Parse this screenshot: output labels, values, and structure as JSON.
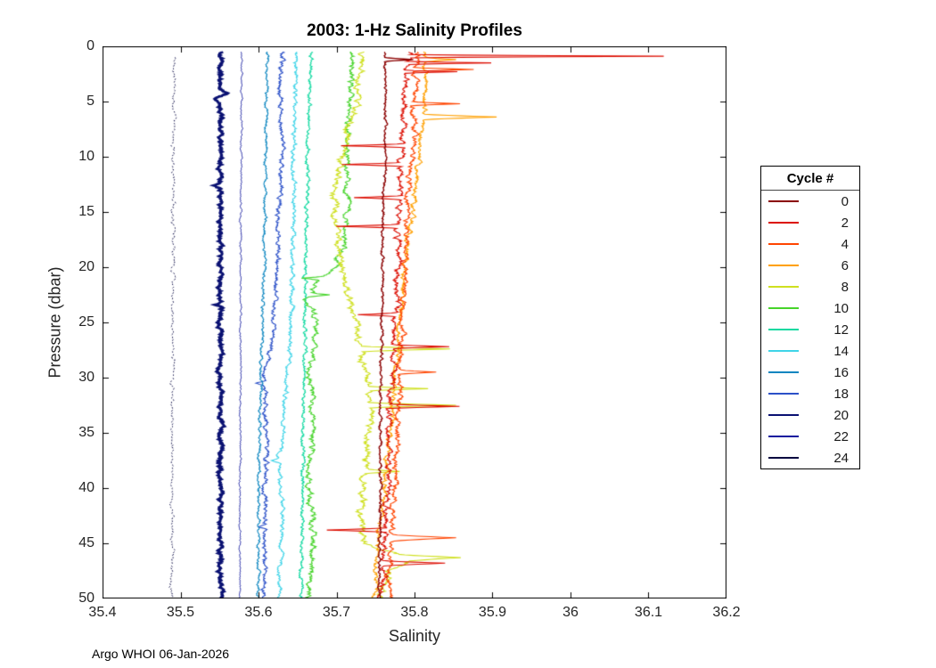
{
  "title": "2003: 1-Hz Salinity Profiles",
  "footer": "Argo WHOI 06-Jan-2026",
  "chart_data": {
    "type": "line",
    "title": "2003: 1-Hz Salinity Profiles",
    "xlabel": "Salinity",
    "ylabel": "Pressure (dbar)",
    "xlim": [
      35.4,
      36.2
    ],
    "ylim": [
      0,
      50
    ],
    "y_axis_reversed": true,
    "grid": false,
    "box": true,
    "tick_direction": "in",
    "xtick_values": [
      35.4,
      35.5,
      35.6,
      35.7,
      35.8,
      35.9,
      36,
      36.1,
      36.2
    ],
    "xtick_labels": [
      "35.4",
      "35.5",
      "35.6",
      "35.7",
      "35.8",
      "35.9",
      "36",
      "36.1",
      "36.2"
    ],
    "ytick_values": [
      0,
      5,
      10,
      15,
      20,
      25,
      30,
      35,
      40,
      45,
      50
    ],
    "ytick_labels": [
      "0",
      "5",
      "10",
      "15",
      "20",
      "25",
      "30",
      "35",
      "40",
      "45",
      "50"
    ],
    "legend": {
      "title": "Cycle #",
      "position": "right-outside",
      "entries": [
        {
          "label": "0",
          "color": "#8B0000"
        },
        {
          "label": "2",
          "color": "#DC0D00"
        },
        {
          "label": "4",
          "color": "#FF4500"
        },
        {
          "label": "6",
          "color": "#FFA000"
        },
        {
          "label": "8",
          "color": "#CFE020"
        },
        {
          "label": "10",
          "color": "#46D42A"
        },
        {
          "label": "12",
          "color": "#0FD9A0"
        },
        {
          "label": "14",
          "color": "#3FD4E8"
        },
        {
          "label": "16",
          "color": "#0C86C0"
        },
        {
          "label": "18",
          "color": "#2B50C8"
        },
        {
          "label": "20",
          "color": "#0A1172"
        },
        {
          "label": "22",
          "color": "#131A9E"
        },
        {
          "label": "24",
          "color": "#02023F"
        }
      ]
    },
    "series": [
      {
        "cycle": 24,
        "color": "#02023F",
        "width": 1.0,
        "noise": 0.0028,
        "dash": [
          2,
          2.5
        ],
        "pmin": 1.0,
        "pmax": 50,
        "anchors": [
          [
            1,
            35.492
          ],
          [
            10,
            35.491
          ],
          [
            20,
            35.49
          ],
          [
            30,
            35.49
          ],
          [
            40,
            35.489
          ],
          [
            50,
            35.489
          ]
        ],
        "spikes": []
      },
      {
        "cycle": 22,
        "color": "#131A9E",
        "width": 1.0,
        "noise": 0.0015,
        "pmin": 0.5,
        "pmax": 50,
        "anchors": [
          [
            0.5,
            35.578
          ],
          [
            10,
            35.578
          ],
          [
            20,
            35.577
          ],
          [
            30,
            35.577
          ],
          [
            40,
            35.576
          ],
          [
            50,
            35.576
          ]
        ],
        "spikes": []
      },
      {
        "cycle": 20,
        "color": "#0A1172",
        "width": 2.8,
        "noise": 0.0035,
        "pmin": 0.5,
        "pmax": 50,
        "anchors": [
          [
            0.5,
            35.551
          ],
          [
            10,
            35.551
          ],
          [
            20,
            35.551
          ],
          [
            30,
            35.551
          ],
          [
            40,
            35.551
          ],
          [
            50,
            35.551
          ]
        ],
        "spikes": [
          [
            4.3,
            35.559,
            0.5
          ],
          [
            4.7,
            35.543,
            0.5
          ],
          [
            12.6,
            35.545,
            0.25
          ],
          [
            23.4,
            35.542,
            0.3
          ],
          [
            33.6,
            35.546,
            0.25
          ]
        ]
      },
      {
        "cycle": 18,
        "color": "#2B50C8",
        "width": 1.1,
        "noise": 0.004,
        "pmin": 0.5,
        "pmax": 50,
        "anchors": [
          [
            0.5,
            35.63
          ],
          [
            4,
            35.628
          ],
          [
            8,
            35.63
          ],
          [
            12,
            35.628
          ],
          [
            16,
            35.626
          ],
          [
            20,
            35.624
          ],
          [
            24,
            35.62
          ],
          [
            27,
            35.616
          ],
          [
            29,
            35.61
          ],
          [
            31,
            35.606
          ],
          [
            33,
            35.61
          ],
          [
            36,
            35.61
          ],
          [
            40,
            35.609
          ],
          [
            44,
            35.608
          ],
          [
            47,
            35.608
          ],
          [
            50,
            35.607
          ]
        ],
        "spikes": [
          [
            30.5,
            35.598,
            0.25
          ],
          [
            43.5,
            35.6,
            0.25
          ]
        ]
      },
      {
        "cycle": 16,
        "color": "#0C86C0",
        "width": 1.1,
        "noise": 0.0025,
        "pmin": 0.5,
        "pmax": 50,
        "anchors": [
          [
            0.5,
            35.612
          ],
          [
            5,
            35.61
          ],
          [
            10,
            35.61
          ],
          [
            15,
            35.608
          ],
          [
            20,
            35.607
          ],
          [
            25,
            35.605
          ],
          [
            30,
            35.603
          ],
          [
            35,
            35.602
          ],
          [
            40,
            35.6
          ],
          [
            45,
            35.6
          ],
          [
            50,
            35.599
          ]
        ],
        "spikes": []
      },
      {
        "cycle": 14,
        "color": "#3FD4E8",
        "width": 1.1,
        "noise": 0.0035,
        "pmin": 0.5,
        "pmax": 50,
        "anchors": [
          [
            0.5,
            35.648
          ],
          [
            5,
            35.646
          ],
          [
            10,
            35.645
          ],
          [
            15,
            35.644
          ],
          [
            20,
            35.643
          ],
          [
            25,
            35.642
          ],
          [
            28,
            35.64
          ],
          [
            30,
            35.636
          ],
          [
            33,
            35.634
          ],
          [
            36,
            35.63
          ],
          [
            38,
            35.625
          ],
          [
            40,
            35.63
          ],
          [
            44,
            35.63
          ],
          [
            47,
            35.628
          ],
          [
            50,
            35.627
          ]
        ],
        "spikes": [
          [
            37.5,
            35.615,
            0.3
          ]
        ]
      },
      {
        "cycle": 12,
        "color": "#0FD9A0",
        "width": 1.1,
        "noise": 0.003,
        "pmin": 0.5,
        "pmax": 50,
        "anchors": [
          [
            0.5,
            35.668
          ],
          [
            5,
            35.665
          ],
          [
            10,
            35.663
          ],
          [
            15,
            35.662
          ],
          [
            20,
            35.66
          ],
          [
            25,
            35.66
          ],
          [
            30,
            35.658
          ],
          [
            35,
            35.657
          ],
          [
            40,
            35.657
          ],
          [
            45,
            35.656
          ],
          [
            50,
            35.655
          ]
        ],
        "spikes": []
      },
      {
        "cycle": 10,
        "color": "#46D42A",
        "width": 1.1,
        "noise": 0.005,
        "pmin": 0.5,
        "pmax": 50,
        "anchors": [
          [
            0.5,
            35.72
          ],
          [
            4,
            35.718
          ],
          [
            8,
            35.715
          ],
          [
            12,
            35.712
          ],
          [
            15,
            35.715
          ],
          [
            18,
            35.71
          ],
          [
            20,
            35.7
          ],
          [
            21.5,
            35.672
          ],
          [
            23,
            35.662
          ],
          [
            25,
            35.675
          ],
          [
            27,
            35.67
          ],
          [
            30,
            35.665
          ],
          [
            33,
            35.672
          ],
          [
            36,
            35.668
          ],
          [
            40,
            35.665
          ],
          [
            44,
            35.67
          ],
          [
            47,
            35.668
          ],
          [
            50,
            35.665
          ]
        ],
        "spikes": [
          [
            21.0,
            35.655,
            0.2
          ],
          [
            22.5,
            35.69,
            0.2
          ]
        ]
      },
      {
        "cycle": 8,
        "color": "#CFE020",
        "width": 1.1,
        "noise": 0.006,
        "pmin": 0.5,
        "pmax": 50,
        "anchors": [
          [
            0.5,
            35.735
          ],
          [
            3,
            35.73
          ],
          [
            6,
            35.72
          ],
          [
            9,
            35.71
          ],
          [
            12,
            35.7
          ],
          [
            15,
            35.695
          ],
          [
            18,
            35.7
          ],
          [
            21,
            35.71
          ],
          [
            24,
            35.72
          ],
          [
            27,
            35.73
          ],
          [
            30,
            35.74
          ],
          [
            33,
            35.745
          ],
          [
            36,
            35.74
          ],
          [
            39,
            35.735
          ],
          [
            42,
            35.73
          ],
          [
            45,
            35.735
          ],
          [
            46.5,
            35.8
          ],
          [
            47.5,
            35.77
          ],
          [
            50,
            35.755
          ]
        ],
        "spikes": [
          [
            27.4,
            35.845,
            0.25
          ],
          [
            31.0,
            35.82,
            0.2
          ],
          [
            32.5,
            35.855,
            0.25
          ],
          [
            38.5,
            35.78,
            0.2
          ],
          [
            46.3,
            35.858,
            0.3
          ]
        ]
      },
      {
        "cycle": 6,
        "color": "#FFA000",
        "width": 1.1,
        "noise": 0.004,
        "pmin": 0.5,
        "pmax": 50,
        "anchors": [
          [
            0.5,
            35.812
          ],
          [
            3,
            35.815
          ],
          [
            6,
            35.812
          ],
          [
            10,
            35.805
          ],
          [
            14,
            35.8
          ],
          [
            18,
            35.79
          ],
          [
            22,
            35.785
          ],
          [
            26,
            35.78
          ],
          [
            30,
            35.775
          ],
          [
            34,
            35.77
          ],
          [
            38,
            35.763
          ],
          [
            42,
            35.758
          ],
          [
            46,
            35.752
          ],
          [
            50,
            35.748
          ]
        ],
        "spikes": [
          [
            1.2,
            35.85,
            0.2
          ],
          [
            6.4,
            35.905,
            0.25
          ]
        ]
      },
      {
        "cycle": 4,
        "color": "#FF4500",
        "width": 1.1,
        "noise": 0.0045,
        "pmin": 0.5,
        "pmax": 50,
        "anchors": [
          [
            0.5,
            35.805
          ],
          [
            4,
            35.8
          ],
          [
            8,
            35.8
          ],
          [
            12,
            35.795
          ],
          [
            16,
            35.79
          ],
          [
            20,
            35.788
          ],
          [
            25,
            35.785
          ],
          [
            30,
            35.782
          ],
          [
            35,
            35.778
          ],
          [
            40,
            35.775
          ],
          [
            45,
            35.77
          ],
          [
            50,
            35.768
          ]
        ],
        "spikes": [
          [
            2.1,
            35.88,
            0.18
          ],
          [
            5.2,
            35.86,
            0.18
          ],
          [
            29.5,
            35.83,
            0.2
          ],
          [
            44.5,
            35.852,
            0.3
          ]
        ]
      },
      {
        "cycle": 2,
        "color": "#DC0D00",
        "width": 1.1,
        "noise": 0.005,
        "pmin": 0.5,
        "pmax": 50,
        "anchors": [
          [
            0.5,
            35.795
          ],
          [
            2,
            35.79
          ],
          [
            5,
            35.788
          ],
          [
            8,
            35.785
          ],
          [
            12,
            35.782
          ],
          [
            16,
            35.78
          ],
          [
            20,
            35.778
          ],
          [
            24,
            35.775
          ],
          [
            28,
            35.772
          ],
          [
            32,
            35.77
          ],
          [
            36,
            35.768
          ],
          [
            40,
            35.765
          ],
          [
            44,
            35.762
          ],
          [
            48,
            35.76
          ],
          [
            50,
            35.758
          ]
        ],
        "spikes": [
          [
            0.9,
            36.115,
            0.14
          ],
          [
            1.5,
            35.9,
            0.14
          ],
          [
            2.3,
            35.86,
            0.14
          ],
          [
            9.0,
            35.705,
            0.18
          ],
          [
            10.7,
            35.71,
            0.18
          ],
          [
            13.7,
            35.72,
            0.18
          ],
          [
            16.3,
            35.7,
            0.18
          ],
          [
            24.3,
            35.73,
            0.18
          ],
          [
            27.2,
            35.845,
            0.18
          ],
          [
            32.6,
            35.862,
            0.2
          ],
          [
            43.8,
            35.688,
            0.2
          ],
          [
            46.8,
            35.84,
            0.25
          ]
        ]
      },
      {
        "cycle": 0,
        "color": "#8B0000",
        "width": 1.3,
        "noise": 0.0022,
        "pmin": 0.5,
        "pmax": 50,
        "anchors": [
          [
            0.5,
            35.762
          ],
          [
            5,
            35.763
          ],
          [
            10,
            35.762
          ],
          [
            15,
            35.76
          ],
          [
            20,
            35.759
          ],
          [
            25,
            35.758
          ],
          [
            30,
            35.757
          ],
          [
            35,
            35.756
          ],
          [
            40,
            35.756
          ],
          [
            45,
            35.755
          ],
          [
            50,
            35.755
          ]
        ],
        "spikes": [
          [
            1.2,
            35.8,
            0.18
          ]
        ]
      }
    ]
  }
}
